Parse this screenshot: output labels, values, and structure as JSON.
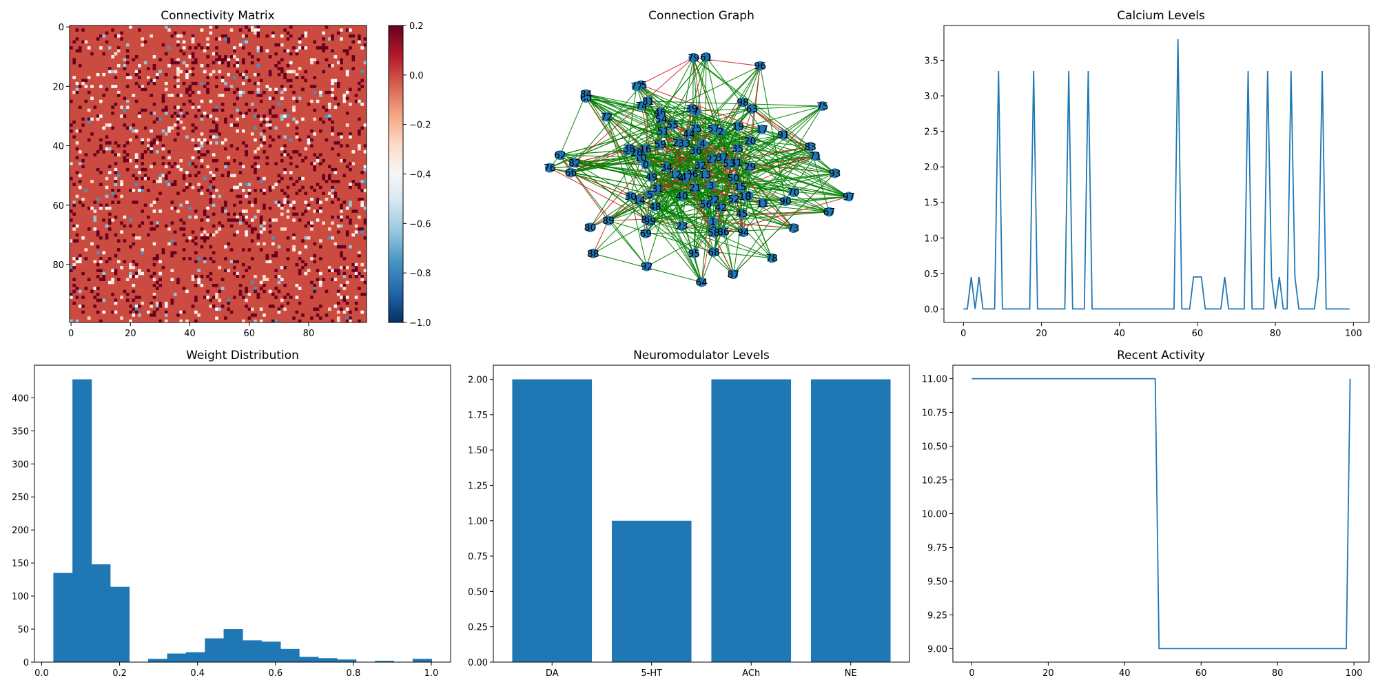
{
  "figure": {
    "titles": {
      "connectivity": "Connectivity Matrix",
      "graph": "Connection Graph",
      "calcium": "Calcium Levels",
      "weights": "Weight Distribution",
      "neuromod": "Neuromodulator Levels",
      "activity": "Recent Activity"
    }
  },
  "colors": {
    "series": "#1f77b4",
    "excitatory_edge": "#008000",
    "inhibitory_edge": "#d62728",
    "matrix_base": "#cc4b41",
    "colormap": "RdBu_r"
  },
  "chart_data": [
    {
      "id": "connectivity",
      "type": "heatmap",
      "title": "Connectivity Matrix",
      "size": [
        100,
        100
      ],
      "xticks": [
        0,
        20,
        40,
        60,
        80
      ],
      "yticks": [
        0,
        20,
        40,
        60,
        80
      ],
      "colorbar": {
        "range": [
          -1.0,
          0.2
        ],
        "ticks": [
          0.2,
          0.0,
          -0.2,
          -0.4,
          -0.6,
          -0.8,
          -1.0
        ],
        "tick_labels": [
          "0.2",
          "0.0",
          "−0.2",
          "−0.4",
          "−0.6",
          "−0.8",
          "−1.0"
        ]
      },
      "background_value": 0.1,
      "note_values": "sparse random entries: ~10% strong positive (0.2), ~6% near zero, ~1.5% negative"
    },
    {
      "id": "graph",
      "type": "network",
      "title": "Connection Graph",
      "node_count": 100,
      "node_labels": [
        "0",
        "1",
        "2",
        "3",
        "4",
        "5",
        "6",
        "7",
        "8",
        "9",
        "10",
        "11",
        "12",
        "13",
        "14",
        "15",
        "16",
        "17",
        "18",
        "19",
        "20",
        "21",
        "22",
        "23",
        "24",
        "25",
        "26",
        "27",
        "28",
        "29",
        "30",
        "31",
        "32",
        "33",
        "34",
        "35",
        "36",
        "37",
        "38",
        "39",
        "40",
        "41",
        "42",
        "43",
        "44",
        "45",
        "46",
        "47",
        "48",
        "49",
        "50",
        "51",
        "52",
        "53",
        "54",
        "55",
        "56",
        "57",
        "58",
        "59",
        "60",
        "61",
        "62",
        "63",
        "64",
        "65",
        "66",
        "67",
        "68",
        "69",
        "70",
        "71",
        "72",
        "73",
        "74",
        "75",
        "76",
        "77",
        "78",
        "79",
        "80",
        "81",
        "82",
        "83",
        "84",
        "85",
        "86",
        "87",
        "88",
        "89",
        "90",
        "91",
        "92",
        "93",
        "94",
        "95",
        "96",
        "97",
        "98",
        "99"
      ],
      "edge_colors": {
        "positive": "green",
        "negative": "red"
      }
    },
    {
      "id": "calcium",
      "type": "line",
      "title": "Calcium Levels",
      "x_range": [
        0,
        99
      ],
      "xlim": [
        -5,
        104
      ],
      "ylim": [
        -0.19,
        3.99
      ],
      "xticks": [
        0,
        20,
        40,
        60,
        80,
        100
      ],
      "yticks": [
        0.0,
        0.5,
        1.0,
        1.5,
        2.0,
        2.5,
        3.0,
        3.5
      ],
      "ytick_labels": [
        "0.0",
        "0.5",
        "1.0",
        "1.5",
        "2.0",
        "2.5",
        "3.0",
        "3.5"
      ],
      "values": [
        0,
        0,
        0.45,
        0,
        0.45,
        0,
        0,
        0,
        0,
        3.35,
        0,
        0,
        0,
        0,
        0,
        0,
        0,
        0,
        3.35,
        0,
        0,
        0,
        0,
        0,
        0,
        0,
        0,
        3.35,
        0,
        0,
        0,
        0,
        3.35,
        0,
        0,
        0,
        0,
        0,
        0,
        0,
        0,
        0,
        0,
        0,
        0,
        0,
        0,
        0,
        0,
        0,
        0,
        0,
        0,
        0,
        0,
        3.8,
        0,
        0,
        0,
        0.45,
        0.45,
        0.45,
        0,
        0,
        0,
        0,
        0,
        0.45,
        0,
        0,
        0,
        0,
        0,
        3.35,
        0,
        0,
        0,
        0,
        3.35,
        0.45,
        0,
        0.45,
        0,
        0,
        3.35,
        0.45,
        0,
        0,
        0,
        0,
        0,
        0.45,
        3.35,
        0,
        0,
        0,
        0,
        0,
        0,
        0
      ]
    },
    {
      "id": "weights",
      "type": "bar",
      "title": "Weight Distribution",
      "bin_edges": [
        0.03,
        0.079,
        0.128,
        0.176,
        0.225,
        0.273,
        0.322,
        0.37,
        0.419,
        0.467,
        0.516,
        0.564,
        0.613,
        0.661,
        0.71,
        0.758,
        0.807,
        0.855,
        0.904,
        0.952,
        1.001
      ],
      "counts": [
        135,
        428,
        148,
        114,
        0,
        5,
        13,
        15,
        36,
        50,
        33,
        31,
        20,
        8,
        6,
        4,
        0,
        2,
        0,
        5
      ],
      "xlim": [
        -0.0185,
        1.0495
      ],
      "ylim": [
        0,
        449.4
      ],
      "xticks": [
        0.0,
        0.2,
        0.4,
        0.6,
        0.8,
        1.0
      ],
      "xtick_labels": [
        "0.0",
        "0.2",
        "0.4",
        "0.6",
        "0.8",
        "1.0"
      ],
      "yticks": [
        0,
        50,
        100,
        150,
        200,
        250,
        300,
        350,
        400
      ]
    },
    {
      "id": "neuromod",
      "type": "bar",
      "title": "Neuromodulator Levels",
      "categories": [
        "DA",
        "5-HT",
        "ACh",
        "NE"
      ],
      "values": [
        2,
        1,
        2,
        2
      ],
      "ylim": [
        0,
        2.1
      ],
      "yticks": [
        0.0,
        0.25,
        0.5,
        0.75,
        1.0,
        1.25,
        1.5,
        1.75,
        2.0
      ],
      "ytick_labels": [
        "0.00",
        "0.25",
        "0.50",
        "0.75",
        "1.00",
        "1.25",
        "1.50",
        "1.75",
        "2.00"
      ]
    },
    {
      "id": "activity",
      "type": "line",
      "title": "Recent Activity",
      "x": [
        0,
        48,
        49,
        98,
        99
      ],
      "y": [
        11,
        11,
        9,
        9,
        11
      ],
      "xlim": [
        -4.95,
        103.95
      ],
      "ylim": [
        8.9,
        11.1
      ],
      "xticks": [
        0,
        20,
        40,
        60,
        80,
        100
      ],
      "yticks": [
        9.0,
        9.25,
        9.5,
        9.75,
        10.0,
        10.25,
        10.5,
        10.75,
        11.0
      ],
      "ytick_labels": [
        "9.00",
        "9.25",
        "9.50",
        "9.75",
        "10.00",
        "10.25",
        "10.50",
        "10.75",
        "11.00"
      ]
    }
  ]
}
